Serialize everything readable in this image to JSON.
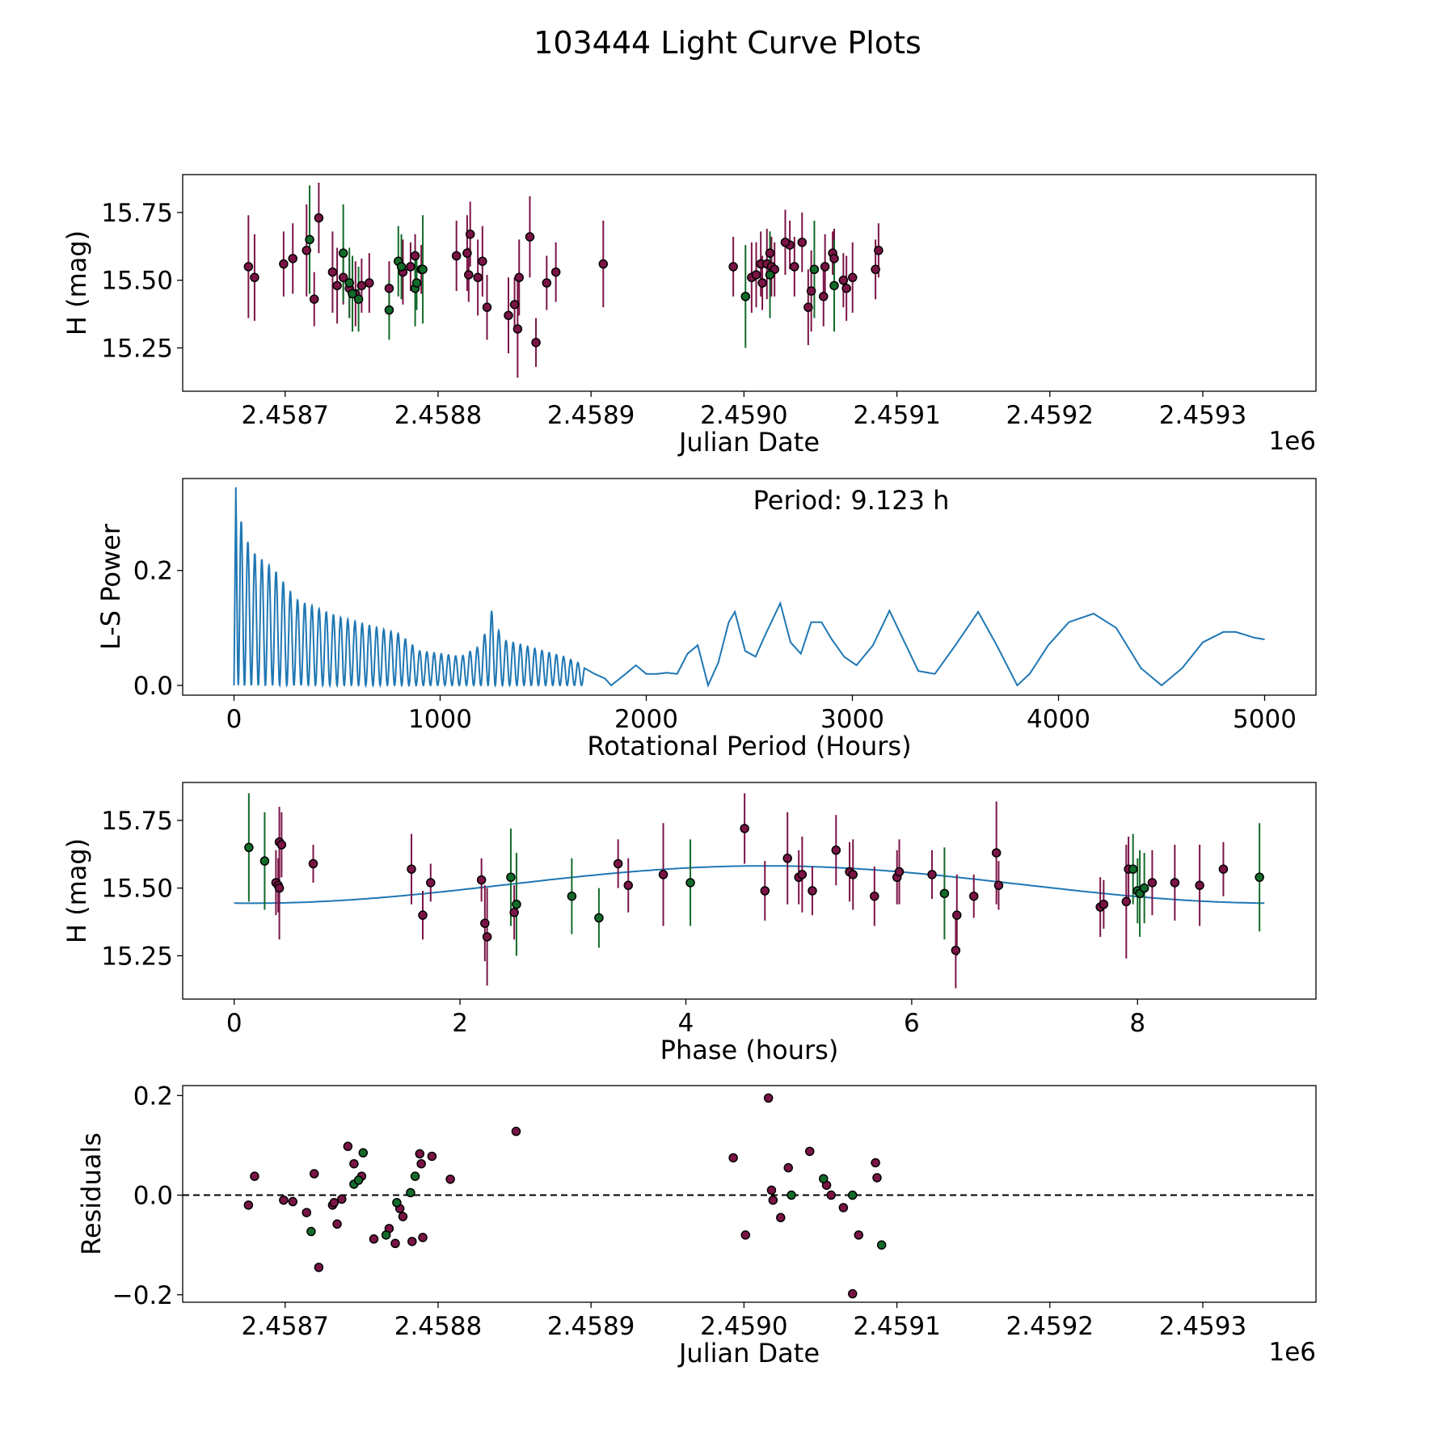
{
  "figure": {
    "title": "103444 Light Curve Plots",
    "colors": {
      "red": "#7b1446",
      "green": "#136b2a",
      "line": "#1f77b4",
      "marker_edge": "#000000"
    }
  },
  "chart_data": [
    {
      "id": "lightcurve",
      "type": "scatter",
      "xlabel": "Julian Date",
      "ylabel": "H (mag)",
      "offset_label": "1e6",
      "xlim": [
        2458633,
        2459374
      ],
      "ylim": [
        15.09,
        15.89
      ],
      "xticks": [
        2458700,
        2458800,
        2458900,
        2459000,
        2459100,
        2459200,
        2459300
      ],
      "xtick_labels": [
        "2.4587",
        "2.4588",
        "2.4589",
        "2.4590",
        "2.4591",
        "2.4592",
        "2.4593"
      ],
      "yticks": [
        15.25,
        15.5,
        15.75
      ],
      "ytick_labels": [
        "15.25",
        "15.50",
        "15.75"
      ],
      "series": [
        {
          "name": "red",
          "x": [
            2458676,
            2458680,
            2458699,
            2458705,
            2458714,
            2458719,
            2458722,
            2458731,
            2458734,
            2458738,
            2458742,
            2458746,
            2458750,
            2458755,
            2458768,
            2458777,
            2458782,
            2458785,
            2458789,
            2458812,
            2458819,
            2458820,
            2458821,
            2458826,
            2458829,
            2458832,
            2458846,
            2458850,
            2458852,
            2458853,
            2458860,
            2458864,
            2458877,
            2458871,
            2458908,
            2458993,
            2459005,
            2459008,
            2459011,
            2459012,
            2459015,
            2459017,
            2459018,
            2459020,
            2459030,
            2459027,
            2459033,
            2459038,
            2459042,
            2459044,
            2459052,
            2459053,
            2459058,
            2459059,
            2459065,
            2459067,
            2459071,
            2459086,
            2459088
          ],
          "y": [
            15.55,
            15.51,
            15.56,
            15.58,
            15.61,
            15.43,
            15.73,
            15.53,
            15.48,
            15.51,
            15.47,
            15.45,
            15.48,
            15.49,
            15.47,
            15.53,
            15.55,
            15.59,
            15.54,
            15.59,
            15.6,
            15.52,
            15.67,
            15.51,
            15.57,
            15.4,
            15.37,
            15.41,
            15.32,
            15.51,
            15.66,
            15.27,
            15.53,
            15.49,
            15.56,
            15.55,
            15.51,
            15.52,
            15.56,
            15.49,
            15.56,
            15.6,
            15.55,
            15.54,
            15.63,
            15.64,
            15.55,
            15.64,
            15.4,
            15.46,
            15.44,
            15.55,
            15.6,
            15.58,
            15.5,
            15.47,
            15.51,
            15.54,
            15.61
          ],
          "err": [
            0.19,
            0.16,
            0.12,
            0.13,
            0.17,
            0.1,
            0.13,
            0.15,
            0.14,
            0.1,
            0.11,
            0.12,
            0.1,
            0.11,
            0.1,
            0.12,
            0.09,
            0.08,
            0.09,
            0.13,
            0.14,
            0.1,
            0.12,
            0.14,
            0.13,
            0.12,
            0.14,
            0.1,
            0.18,
            0.14,
            0.15,
            0.09,
            0.11,
            0.1,
            0.16,
            0.11,
            0.13,
            0.12,
            0.12,
            0.1,
            0.13,
            0.08,
            0.11,
            0.1,
            0.09,
            0.12,
            0.11,
            0.11,
            0.14,
            0.15,
            0.11,
            0.12,
            0.08,
            0.11,
            0.1,
            0.12,
            0.13,
            0.11,
            0.1
          ]
        },
        {
          "name": "green",
          "x": [
            2458716,
            2458738,
            2458742,
            2458744,
            2458748,
            2458768,
            2458774,
            2458776,
            2458785,
            2458786,
            2458790,
            2459001,
            2459017,
            2459046,
            2459059
          ],
          "y": [
            15.65,
            15.6,
            15.49,
            15.45,
            15.43,
            15.39,
            15.57,
            15.55,
            15.47,
            15.49,
            15.54,
            15.44,
            15.52,
            15.54,
            15.48
          ],
          "err": [
            0.2,
            0.18,
            0.13,
            0.14,
            0.12,
            0.11,
            0.13,
            0.12,
            0.14,
            0.1,
            0.2,
            0.19,
            0.16,
            0.18,
            0.17
          ]
        }
      ]
    },
    {
      "id": "periodogram",
      "type": "line",
      "xlabel": "Rotational Period (Hours)",
      "ylabel": "L-S Power",
      "annotation": "Period: 9.123 h",
      "xlim": [
        -249,
        5249
      ],
      "ylim": [
        -0.017,
        0.36
      ],
      "xticks": [
        0,
        1000,
        2000,
        3000,
        4000,
        5000
      ],
      "xtick_labels": [
        "0",
        "1000",
        "2000",
        "3000",
        "4000",
        "5000"
      ],
      "yticks": [
        0,
        0.2
      ],
      "ytick_labels": [
        "0.0",
        "0.2"
      ],
      "x_range": [
        0,
        5000
      ],
      "peak": {
        "x": 9.123,
        "y": 0.345
      },
      "envelope": {
        "x": [
          0,
          50,
          100,
          200,
          300,
          500,
          700,
          800,
          900,
          1100,
          1200,
          1250,
          1300,
          1600,
          1800
        ],
        "y": [
          0.345,
          0.26,
          0.23,
          0.2,
          0.15,
          0.12,
          0.1,
          0.09,
          0.06,
          0.05,
          0.07,
          0.13,
          0.08,
          0.05,
          0.02
        ]
      },
      "series_points": {
        "x": [
          1700,
          1750,
          1800,
          1830,
          1900,
          1950,
          2000,
          2050,
          2100,
          2150,
          2200,
          2250,
          2300,
          2350,
          2400,
          2430,
          2480,
          2530,
          2580,
          2650,
          2700,
          2750,
          2800,
          2850,
          2900,
          2960,
          3020,
          3100,
          3180,
          3260,
          3320,
          3400,
          3500,
          3610,
          3700,
          3800,
          3860,
          3950,
          4050,
          4170,
          4280,
          4400,
          4500,
          4600,
          4700,
          4800,
          4860,
          4950,
          5000
        ],
        "y": [
          0.03,
          0.02,
          0.012,
          0.0,
          0.02,
          0.035,
          0.02,
          0.02,
          0.022,
          0.02,
          0.055,
          0.07,
          0.0,
          0.04,
          0.11,
          0.128,
          0.06,
          0.05,
          0.09,
          0.143,
          0.075,
          0.055,
          0.11,
          0.11,
          0.08,
          0.05,
          0.035,
          0.07,
          0.13,
          0.07,
          0.025,
          0.02,
          0.07,
          0.128,
          0.07,
          0.0,
          0.02,
          0.07,
          0.11,
          0.125,
          0.1,
          0.03,
          0.0,
          0.03,
          0.075,
          0.093,
          0.093,
          0.083,
          0.08
        ]
      }
    },
    {
      "id": "phased",
      "type": "scatter",
      "xlabel": "Phase (hours)",
      "ylabel": "H (mag)",
      "xlim": [
        -0.456,
        9.58
      ],
      "ylim": [
        15.09,
        15.89
      ],
      "xticks": [
        0,
        2,
        4,
        6,
        8
      ],
      "xtick_labels": [
        "0",
        "2",
        "4",
        "6",
        "8"
      ],
      "yticks": [
        15.25,
        15.5,
        15.75
      ],
      "ytick_labels": [
        "15.25",
        "15.50",
        "15.75"
      ],
      "model": {
        "mean": 15.513,
        "amplitude": 0.069,
        "period": 9.123,
        "peak_phase": 4.7
      },
      "series": [
        {
          "name": "red",
          "x": [
            0.37,
            0.39,
            0.4,
            0.4,
            0.42,
            0.7,
            1.57,
            1.67,
            1.74,
            2.19,
            2.22,
            2.24,
            2.48,
            3.4,
            3.49,
            3.8,
            4.52,
            4.7,
            4.9,
            5.0,
            5.03,
            5.12,
            5.33,
            5.45,
            5.48,
            5.67,
            5.87,
            5.89,
            6.18,
            6.39,
            6.4,
            6.55,
            6.75,
            6.77,
            7.67,
            7.7,
            7.9,
            7.92,
            8.13,
            8.33,
            8.55,
            8.76
          ],
          "y": [
            15.52,
            15.51,
            15.67,
            15.5,
            15.66,
            15.59,
            15.57,
            15.4,
            15.52,
            15.53,
            15.37,
            15.32,
            15.41,
            15.59,
            15.51,
            15.55,
            15.72,
            15.49,
            15.61,
            15.54,
            15.55,
            15.49,
            15.64,
            15.56,
            15.55,
            15.47,
            15.54,
            15.56,
            15.55,
            15.27,
            15.4,
            15.47,
            15.63,
            15.51,
            15.43,
            15.44,
            15.45,
            15.57,
            15.52,
            15.52,
            15.51,
            15.57
          ],
          "err": [
            0.12,
            0.1,
            0.13,
            0.19,
            0.12,
            0.07,
            0.13,
            0.09,
            0.07,
            0.08,
            0.14,
            0.18,
            0.1,
            0.09,
            0.1,
            0.19,
            0.13,
            0.11,
            0.17,
            0.1,
            0.14,
            0.09,
            0.13,
            0.11,
            0.13,
            0.11,
            0.1,
            0.12,
            0.09,
            0.14,
            0.15,
            0.08,
            0.19,
            0.09,
            0.11,
            0.09,
            0.21,
            0.12,
            0.12,
            0.14,
            0.15,
            0.1
          ]
        },
        {
          "name": "green",
          "x": [
            0.13,
            0.27,
            2.45,
            2.5,
            2.99,
            3.23,
            4.04,
            6.29,
            7.96,
            8.0,
            8.02,
            8.06,
            9.08
          ],
          "y": [
            15.65,
            15.6,
            15.54,
            15.44,
            15.47,
            15.39,
            15.52,
            15.48,
            15.57,
            15.49,
            15.48,
            15.5,
            15.54
          ],
          "err": [
            0.2,
            0.18,
            0.18,
            0.19,
            0.14,
            0.11,
            0.16,
            0.17,
            0.13,
            0.12,
            0.16,
            0.13,
            0.2
          ]
        }
      ]
    },
    {
      "id": "residuals",
      "type": "scatter",
      "xlabel": "Julian Date",
      "ylabel": "Residuals",
      "offset_label": "1e6",
      "xlim": [
        2458633,
        2459374
      ],
      "ylim": [
        -0.215,
        0.22
      ],
      "xticks": [
        2458700,
        2458800,
        2458900,
        2459000,
        2459100,
        2459200,
        2459300
      ],
      "xtick_labels": [
        "2.4587",
        "2.4588",
        "2.4589",
        "2.4590",
        "2.4591",
        "2.4592",
        "2.4593"
      ],
      "yticks": [
        -0.2,
        0,
        0.2
      ],
      "ytick_labels": [
        "−0.2",
        "0.0",
        "0.2"
      ],
      "zero_line": 0,
      "series": [
        {
          "name": "red",
          "x": [
            2458676,
            2458680,
            2458699,
            2458705,
            2458714,
            2458719,
            2458722,
            2458731,
            2458732,
            2458734,
            2458737,
            2458741,
            2458745,
            2458750,
            2458758,
            2458768,
            2458772,
            2458775,
            2458777,
            2458783,
            2458788,
            2458789,
            2458790,
            2458796,
            2458808,
            2458851,
            2458993,
            2459001,
            2459016,
            2459018,
            2459019,
            2459024,
            2459029,
            2459043,
            2459054,
            2459057,
            2459065,
            2459071,
            2459075,
            2459086,
            2459087
          ],
          "y": [
            -0.02,
            0.038,
            -0.01,
            -0.013,
            -0.035,
            0.043,
            -0.145,
            -0.02,
            -0.015,
            -0.058,
            -0.008,
            0.098,
            0.063,
            0.038,
            -0.088,
            -0.067,
            -0.097,
            -0.027,
            -0.043,
            -0.093,
            0.083,
            0.063,
            -0.085,
            0.078,
            0.032,
            0.128,
            0.075,
            -0.08,
            0.195,
            0.01,
            -0.01,
            -0.045,
            0.055,
            0.088,
            0.02,
            0.0,
            -0.025,
            -0.198,
            -0.08,
            0.065,
            0.035
          ],
          "err": []
        },
        {
          "name": "green",
          "x": [
            2458717,
            2458745,
            2458748,
            2458751,
            2458766,
            2458773,
            2458782,
            2458785,
            2459031,
            2459052,
            2459071,
            2459090
          ],
          "y": [
            -0.073,
            0.022,
            0.03,
            0.085,
            -0.08,
            -0.015,
            0.005,
            0.038,
            0.0,
            0.033,
            0.0,
            -0.1
          ],
          "err": []
        }
      ]
    }
  ]
}
